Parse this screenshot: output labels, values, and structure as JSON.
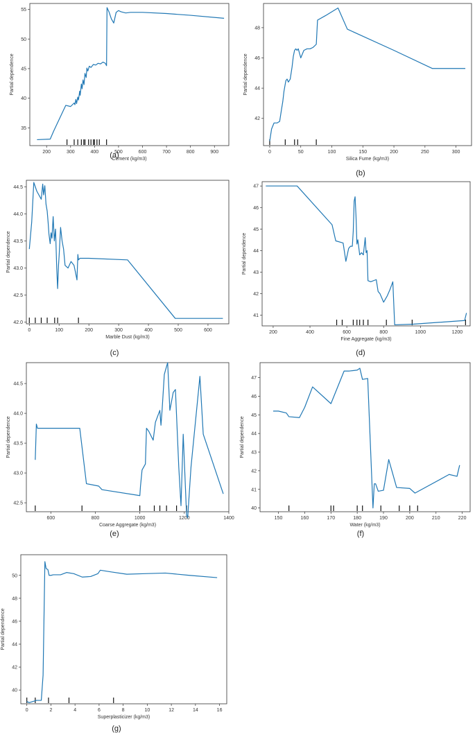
{
  "line_color": "#1f77b4",
  "chart_data": [
    {
      "type": "line",
      "panel_label": "(a)",
      "xlabel": "Cement (kg/m3)",
      "ylabel": "Partial dependence",
      "xlim": [
        130,
        960
      ],
      "ylim": [
        32,
        56
      ],
      "xticks": [
        200,
        300,
        400,
        500,
        600,
        700,
        800,
        900
      ],
      "yticks": [
        35,
        40,
        45,
        50,
        55
      ],
      "rug": [
        285,
        315,
        330,
        345,
        355,
        360,
        375,
        385,
        395,
        400,
        410,
        420,
        450
      ],
      "x": [
        160,
        215,
        230,
        280,
        300,
        315,
        318,
        322,
        325,
        330,
        333,
        338,
        340,
        345,
        348,
        352,
        356,
        360,
        365,
        368,
        372,
        378,
        385,
        395,
        405,
        415,
        425,
        435,
        445,
        450,
        452,
        460,
        470,
        480,
        490,
        500,
        510,
        530,
        550,
        600,
        700,
        800,
        940
      ],
      "y": [
        33,
        33.1,
        34.5,
        38.8,
        38.6,
        39.2,
        38.9,
        39.8,
        39.1,
        40.2,
        39.7,
        41.2,
        40.5,
        42.4,
        41.6,
        43.1,
        42.3,
        44.2,
        43.5,
        45.1,
        44.6,
        45.4,
        45.2,
        45.7,
        45.6,
        45.9,
        45.8,
        46.1,
        45.9,
        45.5,
        55.3,
        54.6,
        53.4,
        52.7,
        54.5,
        54.8,
        54.6,
        54.4,
        54.5,
        54.5,
        54.3,
        54.0,
        53.5
      ]
    },
    {
      "type": "line",
      "panel_label": "(b)",
      "xlabel": "Silica Fume (kg/m3)",
      "ylabel": "Partial dependence",
      "xlim": [
        -10,
        325
      ],
      "ylim": [
        40.2,
        49.6
      ],
      "xticks": [
        0,
        50,
        100,
        150,
        200,
        250,
        300
      ],
      "yticks": [
        42,
        44,
        46,
        48
      ],
      "rug": [
        0,
        25,
        40,
        45,
        75
      ],
      "x": [
        0,
        3,
        7,
        12,
        16,
        19,
        21,
        23,
        26,
        28,
        30,
        33,
        36,
        38,
        40,
        42,
        44,
        46,
        50,
        55,
        60,
        65,
        70,
        75,
        77,
        90,
        110,
        125,
        200,
        262,
        315
      ],
      "y": [
        40.5,
        41.3,
        41.7,
        41.7,
        41.8,
        42.6,
        43.1,
        43.8,
        44.5,
        44.6,
        44.4,
        44.6,
        45.4,
        46.1,
        46.5,
        46.6,
        46.5,
        46.6,
        46.0,
        46.5,
        46.6,
        46.6,
        46.7,
        46.9,
        48.5,
        48.8,
        49.3,
        47.9,
        46.5,
        45.3,
        45.3
      ]
    },
    {
      "type": "line",
      "panel_label": "(c)",
      "xlabel": "Marble Dust (kg/m3)",
      "ylabel": "Partial dependence",
      "xlim": [
        -10,
        670
      ],
      "ylim": [
        41.97,
        44.62
      ],
      "xticks": [
        0,
        100,
        200,
        300,
        400,
        500,
        600
      ],
      "yticks": [
        42.0,
        42.5,
        43.0,
        43.5,
        44.0,
        44.5
      ],
      "rug": [
        0,
        20,
        40,
        60,
        85,
        95,
        165
      ],
      "x": [
        0,
        8,
        15,
        25,
        40,
        45,
        48,
        52,
        56,
        60,
        63,
        66,
        70,
        73,
        76,
        80,
        84,
        88,
        92,
        95,
        98,
        100,
        105,
        110,
        115,
        120,
        130,
        140,
        150,
        155,
        160,
        163,
        165,
        170,
        200,
        330,
        490,
        650
      ],
      "y": [
        43.35,
        43.85,
        44.58,
        44.42,
        44.27,
        44.55,
        44.35,
        44.52,
        44.18,
        44.05,
        43.85,
        43.62,
        43.45,
        43.65,
        43.55,
        43.95,
        43.5,
        43.72,
        43.0,
        42.62,
        43.05,
        43.22,
        43.75,
        43.5,
        43.35,
        43.05,
        43.0,
        43.12,
        43.05,
        42.92,
        42.78,
        43.25,
        43.15,
        43.18,
        43.18,
        43.15,
        42.07,
        42.07
      ]
    },
    {
      "type": "line",
      "panel_label": "(d)",
      "xlabel": "Fine Aggregate (kg/m3)",
      "ylabel": "Partial dependence",
      "xlim": [
        140,
        1270
      ],
      "ylim": [
        40.5,
        47.2
      ],
      "xticks": [
        200,
        400,
        600,
        800,
        1000,
        1200
      ],
      "yticks": [
        41,
        42,
        43,
        44,
        45,
        46,
        47
      ],
      "rug": [
        545,
        575,
        635,
        655,
        670,
        690,
        715,
        815,
        955,
        1245
      ],
      "x": [
        160,
        330,
        520,
        540,
        580,
        595,
        610,
        620,
        630,
        635,
        640,
        645,
        650,
        655,
        660,
        670,
        680,
        690,
        700,
        705,
        710,
        715,
        730,
        760,
        770,
        780,
        790,
        800,
        810,
        820,
        835,
        850,
        860,
        960,
        1240,
        1250
      ],
      "y": [
        47.0,
        47.0,
        45.2,
        44.45,
        44.35,
        43.5,
        44.1,
        44.2,
        44.2,
        44.9,
        46.3,
        46.5,
        45.6,
        44.3,
        44.5,
        43.8,
        43.9,
        43.8,
        44.6,
        43.9,
        44.0,
        42.6,
        42.55,
        42.65,
        42.1,
        42.0,
        41.8,
        41.6,
        41.75,
        41.9,
        42.2,
        42.55,
        40.55,
        40.58,
        40.75,
        41.1
      ]
    },
    {
      "type": "line",
      "panel_label": "(e)",
      "xlabel": "Coarse Aggregate (kg/m3)",
      "ylabel": "Partial dependence",
      "xlim": [
        490,
        1400
      ],
      "ylim": [
        42.35,
        44.85
      ],
      "xticks": [
        600,
        800,
        1000,
        1200,
        1400
      ],
      "yticks": [
        42.5,
        43.0,
        43.5,
        44.0,
        44.5
      ],
      "rug": [
        530,
        740,
        1000,
        1065,
        1090,
        1120,
        1165,
        1210
      ],
      "x": [
        530,
        535,
        540,
        730,
        760,
        815,
        830,
        1000,
        1003,
        1010,
        1025,
        1030,
        1040,
        1060,
        1070,
        1085,
        1090,
        1095,
        1100,
        1110,
        1115,
        1125,
        1135,
        1150,
        1160,
        1175,
        1185,
        1195,
        1210,
        1215,
        1230,
        1270,
        1285,
        1375
      ],
      "y": [
        43.22,
        43.82,
        43.75,
        43.75,
        42.82,
        42.78,
        42.72,
        42.62,
        42.78,
        43.05,
        43.15,
        43.75,
        43.7,
        43.55,
        43.85,
        44.0,
        44.05,
        43.8,
        44.05,
        44.65,
        44.72,
        44.85,
        44.05,
        44.35,
        44.4,
        43.1,
        42.45,
        43.65,
        42.3,
        42.25,
        43.1,
        44.62,
        43.65,
        42.65
      ]
    },
    {
      "type": "line",
      "panel_label": "(f)",
      "xlabel": "Water (kg/m3)",
      "ylabel": "Partial dependence",
      "xlim": [
        143,
        223
      ],
      "ylim": [
        39.8,
        47.8
      ],
      "xticks": [
        150,
        160,
        170,
        180,
        190,
        200,
        210,
        220
      ],
      "yticks": [
        40,
        41,
        42,
        43,
        44,
        45,
        46,
        47
      ],
      "rug": [
        154,
        170,
        171,
        180,
        182,
        189,
        196,
        200,
        203
      ],
      "x": [
        148,
        150,
        153,
        154,
        158,
        160,
        163,
        170,
        175,
        177,
        180,
        181,
        182,
        184,
        184.5,
        186,
        186.5,
        187,
        188,
        190,
        192,
        193,
        195,
        200,
        202,
        215,
        218,
        219
      ],
      "y": [
        45.2,
        45.2,
        45.1,
        44.9,
        44.85,
        45.4,
        46.5,
        45.6,
        47.35,
        47.35,
        47.4,
        47.5,
        46.9,
        46.95,
        45.2,
        40.0,
        41.3,
        41.3,
        40.9,
        40.95,
        42.6,
        42.1,
        41.1,
        41.05,
        40.8,
        41.8,
        41.7,
        42.3
      ]
    },
    {
      "type": "line",
      "panel_label": "(g)",
      "xlabel": "Superplasticizer (kg/m3)",
      "ylabel": "Partial dependence",
      "xlim": [
        -0.5,
        16.6
      ],
      "ylim": [
        38.8,
        51.8
      ],
      "xticks": [
        0,
        2,
        4,
        6,
        8,
        10,
        12,
        14,
        16
      ],
      "yticks": [
        40,
        42,
        44,
        46,
        48,
        50
      ],
      "rug": [
        0,
        0.7,
        1.8,
        3.5,
        7.2
      ],
      "x": [
        0,
        0.2,
        0.5,
        0.8,
        1.2,
        1.35,
        1.5,
        1.6,
        1.75,
        1.85,
        2.0,
        2.2,
        2.8,
        3.3,
        3.9,
        4.6,
        5.3,
        5.9,
        6.1,
        7.0,
        8.3,
        9.8,
        11.5,
        13.5,
        15.8
      ],
      "y": [
        39.0,
        38.9,
        39.0,
        39.1,
        39.1,
        41.3,
        51.2,
        50.6,
        50.5,
        50.0,
        50.0,
        50.05,
        50.05,
        50.25,
        50.15,
        49.85,
        49.9,
        50.15,
        50.45,
        50.3,
        50.1,
        50.15,
        50.2,
        50.0,
        49.8
      ]
    }
  ]
}
